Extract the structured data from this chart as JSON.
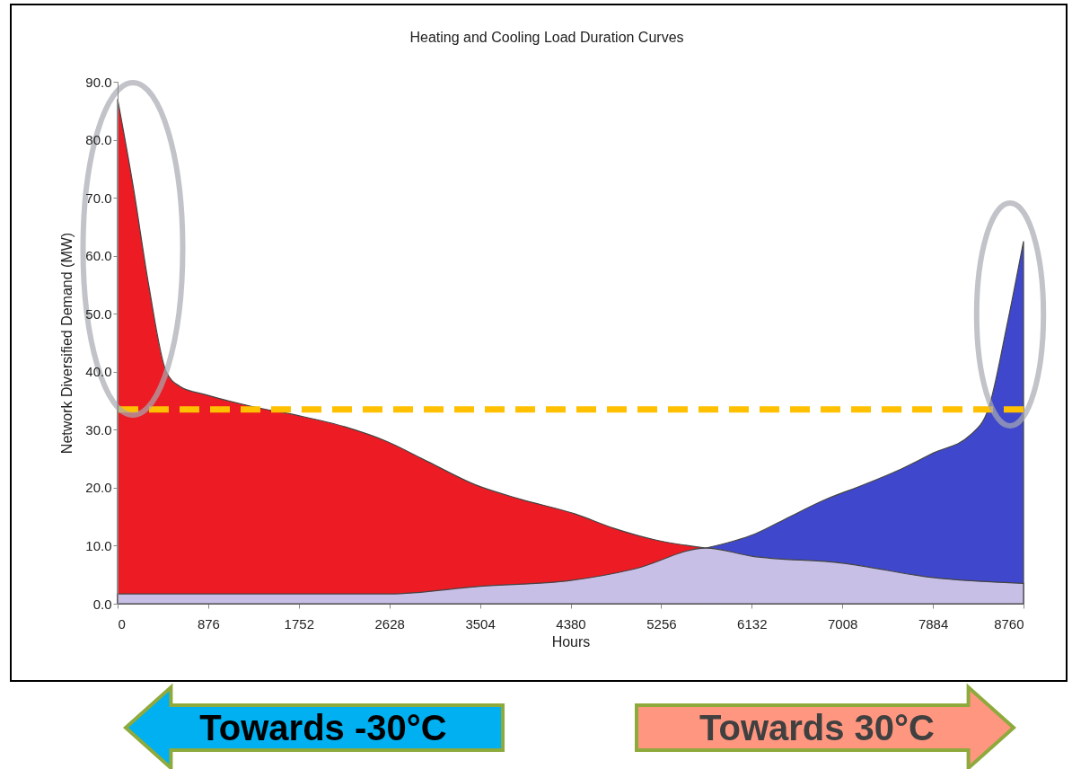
{
  "chart_data": {
    "type": "area",
    "title": "Heating and Cooling Load Duration Curves",
    "xlabel": "Hours",
    "ylabel": "Network Diversified Demand (MW)",
    "xlim": [
      0,
      8760
    ],
    "xticks": [
      0,
      876,
      1752,
      2628,
      3504,
      4380,
      5256,
      6132,
      7008,
      7884,
      8760
    ],
    "ylim": [
      0,
      90
    ],
    "yticks": [
      {
        "value": 0,
        "label": "0.0"
      },
      {
        "value": 10,
        "label": "10.0"
      },
      {
        "value": 20,
        "label": "20.0"
      },
      {
        "value": 30,
        "label": "30.0"
      },
      {
        "value": 40,
        "label": "40.0"
      },
      {
        "value": 50,
        "label": "50.0"
      },
      {
        "value": 60,
        "label": "60.0"
      },
      {
        "value": 70,
        "label": "70.0"
      },
      {
        "value": 80,
        "label": "80.0"
      },
      {
        "value": 90,
        "label": "90.0"
      }
    ],
    "series": [
      {
        "color": "#ed1c24",
        "x": [
          0,
          150,
          300,
          470,
          600,
          860,
          1300,
          1730,
          2200,
          2600,
          3000,
          3460,
          3900,
          4420,
          4800,
          5200,
          5690
        ],
        "values": [
          87,
          72,
          55,
          40,
          37.5,
          36,
          34,
          32.5,
          30.5,
          28,
          24.5,
          20.5,
          18,
          15.5,
          13,
          11,
          9.6
        ]
      },
      {
        "color": "#3f48cc",
        "x": [
          5690,
          6160,
          6500,
          6850,
          7200,
          7550,
          7890,
          8240,
          8420,
          8600,
          8760
        ],
        "values": [
          9.6,
          12,
          15,
          18,
          20.4,
          23,
          26,
          29,
          33.6,
          48,
          62.5
        ]
      },
      {
        "color": "#c8bfe7",
        "x": [
          0,
          1000,
          2000,
          2628,
          3504,
          4380,
          5000,
          5690,
          6132,
          7008,
          7884,
          8760
        ],
        "values": [
          1.7,
          1.7,
          1.7,
          1.7,
          3,
          4,
          6,
          9.6,
          8.2,
          7,
          4.5,
          3.5
        ]
      }
    ],
    "ref_lines": [
      {
        "axis": "y",
        "value": 33.5,
        "color": "#ffc000",
        "line_style": "dashed"
      }
    ],
    "annotations": [
      "Towards -30°C",
      "Towards 30°C"
    ],
    "grid": false
  }
}
